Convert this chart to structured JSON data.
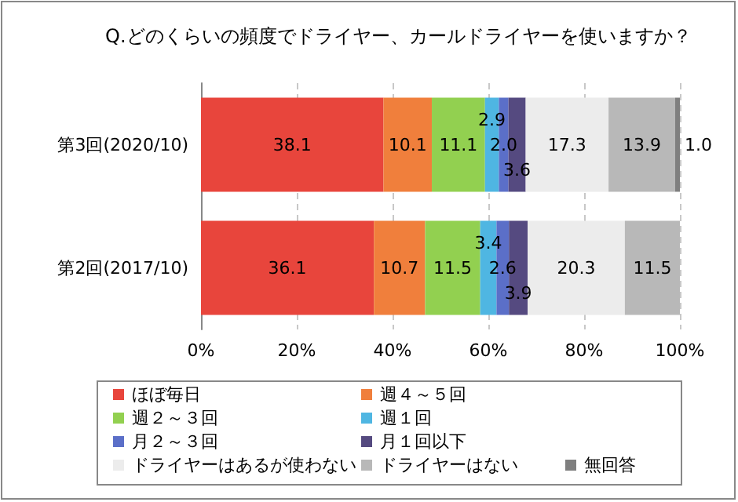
{
  "chart_data": {
    "type": "bar",
    "orientation": "horizontal",
    "stacked": true,
    "title": "Q.どのくらいの頻度でドライヤー、カールドライヤーを使いますか？",
    "categories": [
      "第3回(2020/10)",
      "第2回(2017/10)"
    ],
    "series": [
      {
        "name": "ほぼ毎日",
        "color": "#e8453c",
        "values": [
          38.1,
          36.1
        ],
        "value_labels": [
          "38.1",
          "36.1"
        ]
      },
      {
        "name": "週４～５回",
        "color": "#f07f3c",
        "values": [
          10.1,
          10.7
        ],
        "value_labels": [
          "10.1",
          "10.7"
        ]
      },
      {
        "name": "週２～３回",
        "color": "#92d050",
        "values": [
          11.1,
          11.5
        ],
        "value_labels": [
          "11.1",
          "11.5"
        ]
      },
      {
        "name": "週１回",
        "color": "#4fb6e2",
        "values": [
          2.9,
          3.4
        ],
        "value_labels": [
          "2.9",
          "3.4"
        ]
      },
      {
        "name": "月２～３回",
        "color": "#5b6fc8",
        "values": [
          2.0,
          2.6
        ],
        "value_labels": [
          "2.0",
          "2.6"
        ]
      },
      {
        "name": "月１回以下",
        "color": "#554a80",
        "values": [
          3.6,
          3.9
        ],
        "value_labels": [
          "3.6",
          "3.9"
        ]
      },
      {
        "name": "ドライヤーはあるが使わない",
        "color": "#ececec",
        "values": [
          17.3,
          20.3
        ],
        "value_labels": [
          "17.3",
          "20.3"
        ]
      },
      {
        "name": "ドライヤーはない",
        "color": "#b8b8b8",
        "values": [
          13.9,
          11.5
        ],
        "value_labels": [
          "13.9",
          "11.5"
        ]
      },
      {
        "name": "無回答",
        "color": "#7f7f7f",
        "values": [
          1.0,
          null
        ],
        "value_labels": [
          "1.0",
          null
        ]
      }
    ],
    "xlim": [
      0,
      100
    ],
    "xticks": [
      {
        "value": 0,
        "label": "0%"
      },
      {
        "value": 20,
        "label": "20%"
      },
      {
        "value": 40,
        "label": "40%"
      },
      {
        "value": 60,
        "label": "60%"
      },
      {
        "value": 80,
        "label": "80%"
      },
      {
        "value": 100,
        "label": "100%"
      }
    ],
    "grid": "x",
    "legend": "bottom"
  }
}
